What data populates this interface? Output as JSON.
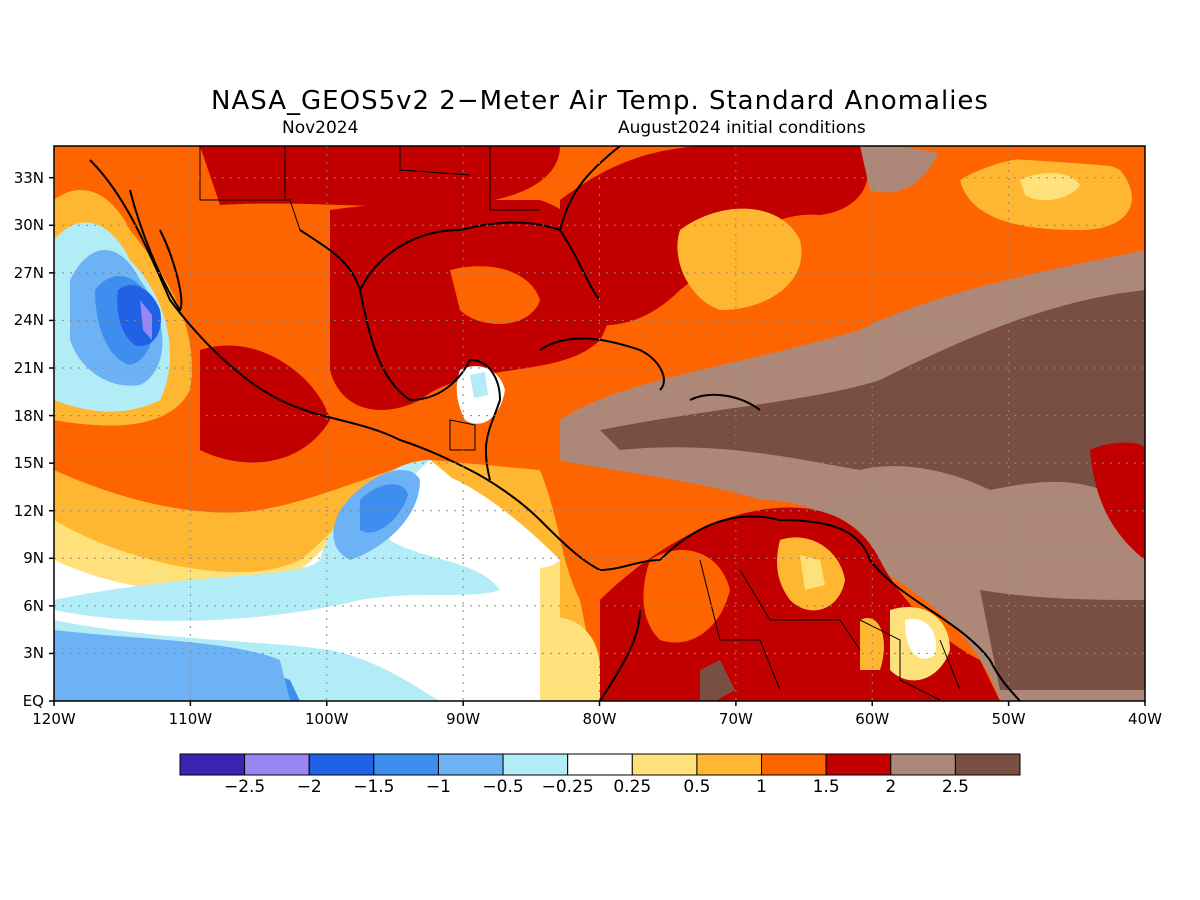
{
  "title": "NASA_GEOS5v2 2−Meter Air Temp. Standard Anomalies",
  "subtitle_left": "Nov2024",
  "subtitle_right": "August2024 initial conditions",
  "map": {
    "lon_range": [
      -120,
      -40
    ],
    "lat_range": [
      0,
      35
    ],
    "grid": true,
    "lat_labels": [
      "EQ",
      "3N",
      "6N",
      "9N",
      "12N",
      "15N",
      "18N",
      "21N",
      "24N",
      "27N",
      "30N",
      "33N"
    ],
    "lon_labels": [
      "120W",
      "110W",
      "100W",
      "90W",
      "80W",
      "70W",
      "60W",
      "50W",
      "40W"
    ]
  },
  "colorbar": {
    "colors": [
      "#3a24b2",
      "#9a86f2",
      "#1f62e6",
      "#3e8ef0",
      "#6db2f5",
      "#b2ecf7",
      "#ffffff",
      "#ffe17c",
      "#ffb732",
      "#fe6500",
      "#c20000",
      "#ad8878",
      "#7a4f43"
    ],
    "labels": [
      "−2.5",
      "−2",
      "−1.5",
      "−1",
      "−0.5",
      "−0.25",
      "0.25",
      "0.5",
      "1",
      "1.5",
      "2",
      "2.5"
    ]
  }
}
